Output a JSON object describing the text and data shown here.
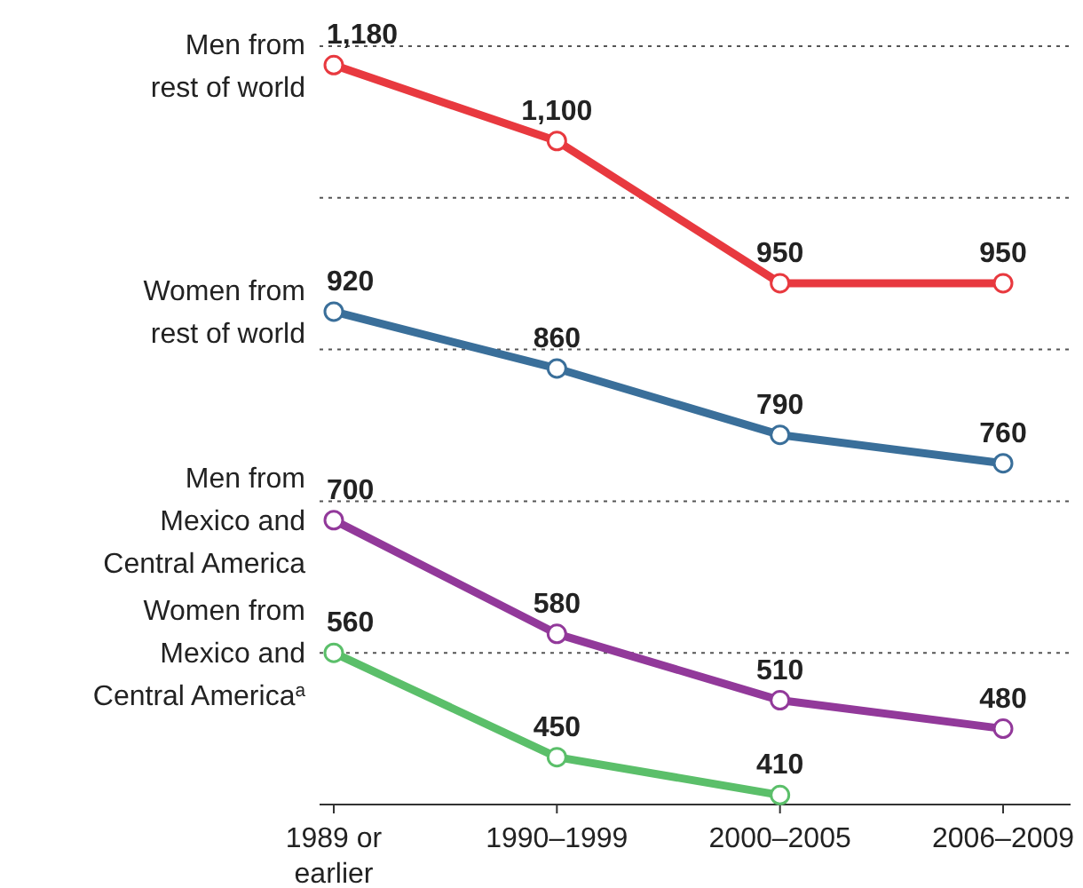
{
  "chart_data": {
    "type": "line",
    "categories": [
      "1989 or\nearlier",
      "1990–1999",
      "2000–2005",
      "2006–2009"
    ],
    "series": [
      {
        "name": "Men from\nrest of world",
        "color": "#e8393f",
        "values": [
          1180,
          1100,
          950,
          950
        ],
        "value_labels": [
          "1,180",
          "1,100",
          "950",
          "950"
        ]
      },
      {
        "name": "Women from\nrest of world",
        "color": "#3a6f9a",
        "values": [
          920,
          860,
          790,
          760
        ],
        "value_labels": [
          "920",
          "860",
          "790",
          "760"
        ]
      },
      {
        "name": "Men from\nMexico and\nCentral America",
        "color": "#92399a",
        "values": [
          700,
          580,
          510,
          480
        ],
        "value_labels": [
          "700",
          "580",
          "510",
          "480"
        ]
      },
      {
        "name": "Women from\nMexico and\nCentral America$^{a}$",
        "color": "#5bbf6a",
        "values": [
          560,
          450,
          410,
          null
        ],
        "value_labels": [
          "560",
          "450",
          "410",
          null
        ]
      }
    ],
    "ylim": [
      400,
      1200
    ],
    "yticks": [
      {
        "value": 560,
        "label": null
      },
      {
        "value": 720,
        "label": null
      },
      {
        "value": 880,
        "label": null
      },
      {
        "value": 1040,
        "label": null
      },
      {
        "value": 1200,
        "label": null
      }
    ],
    "grid": "y",
    "tick_labels": "x",
    "marker": "circle",
    "line_style": "solid"
  }
}
